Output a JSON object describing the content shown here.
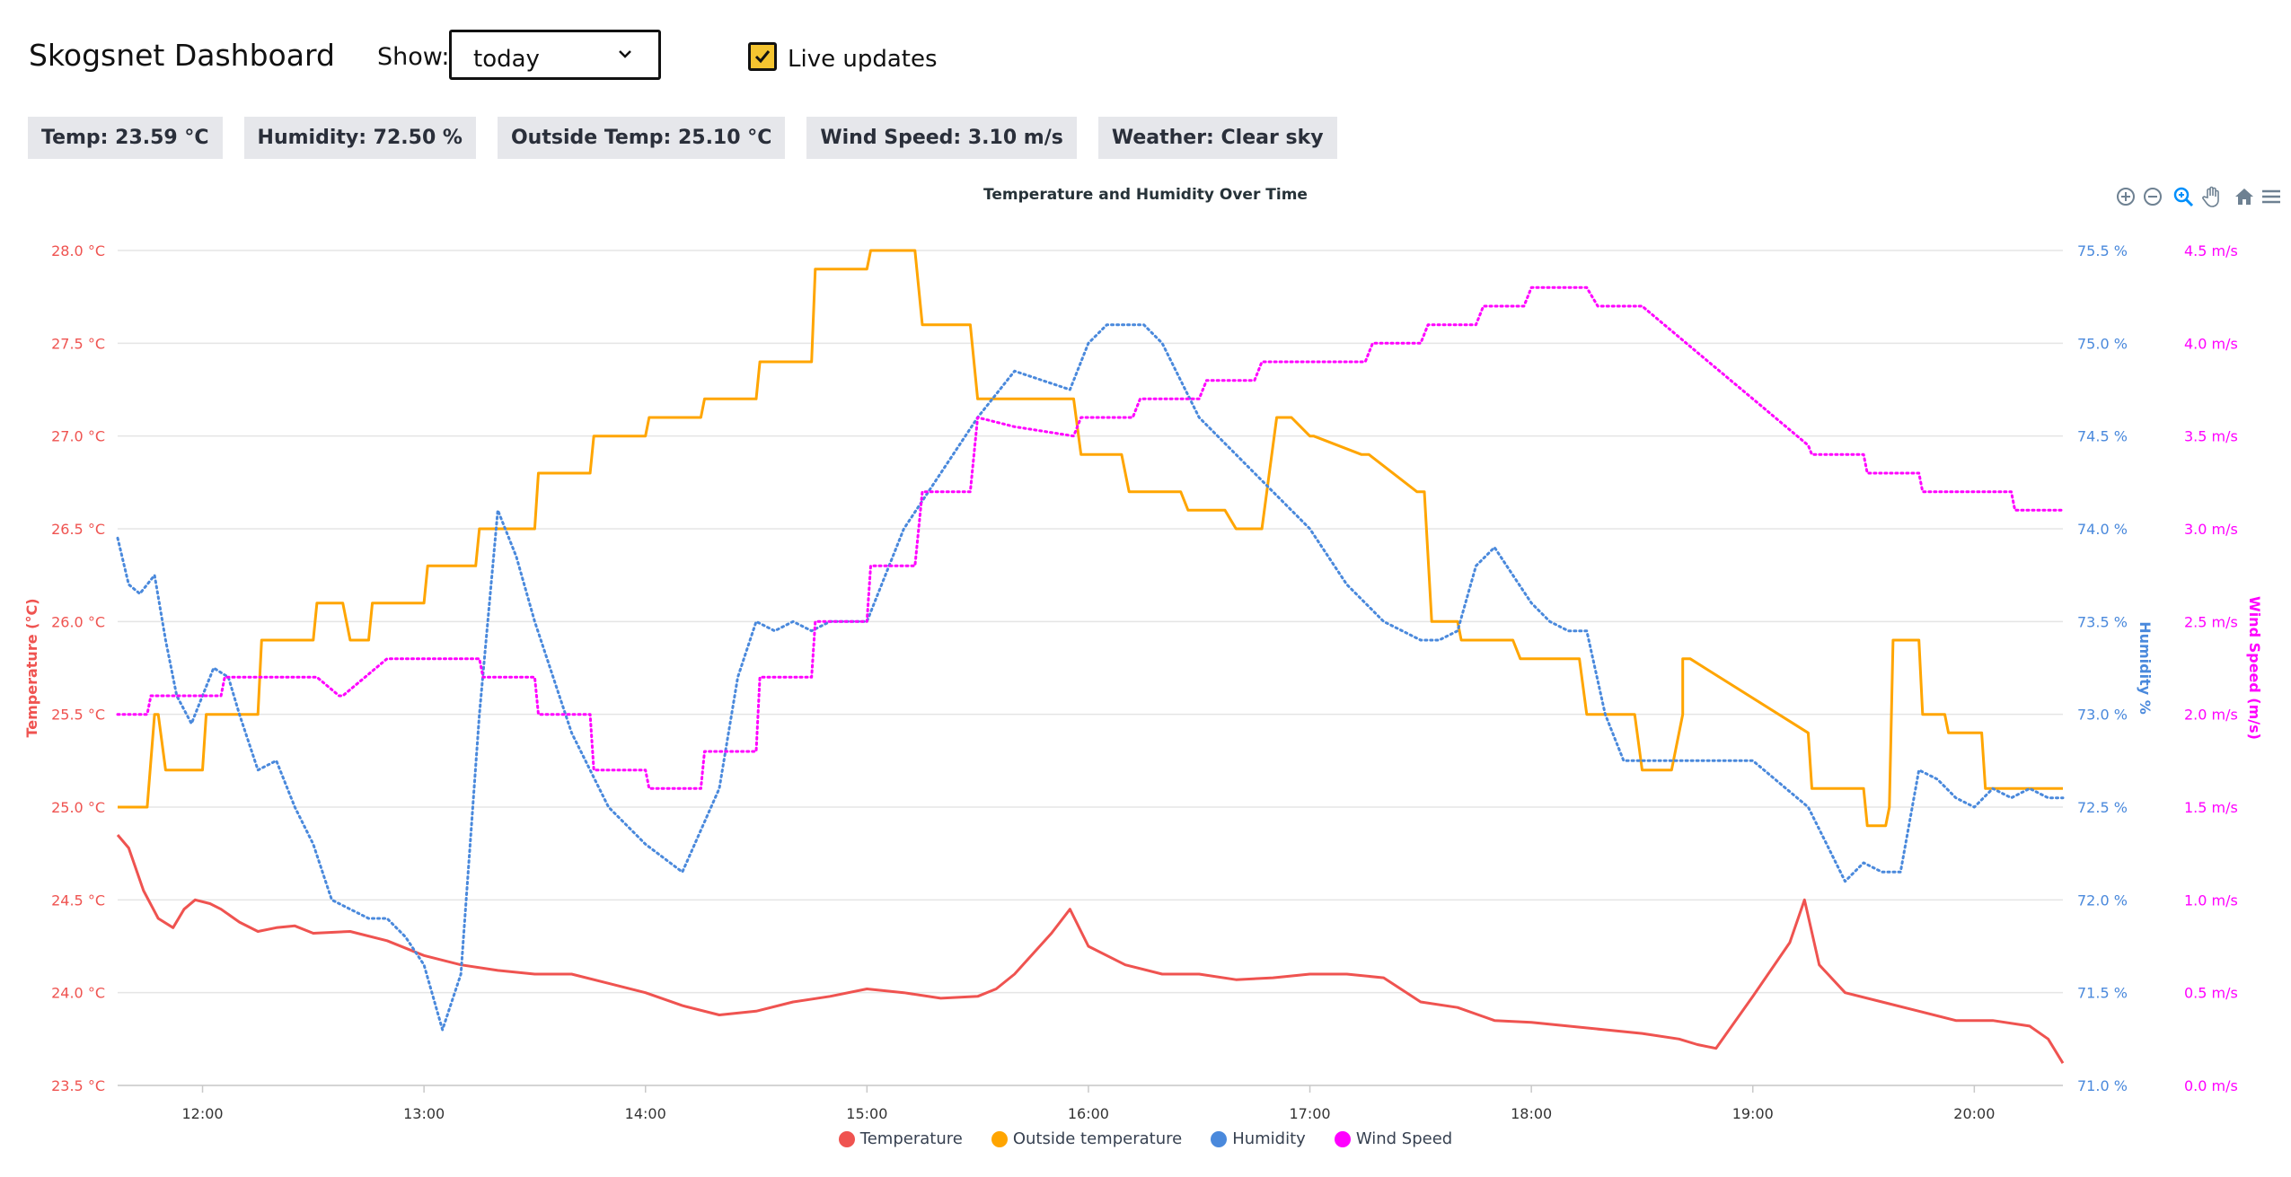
{
  "header": {
    "title": "Skogsnet Dashboard",
    "show_label": "Show:",
    "show_value": "today",
    "live_label": "Live updates",
    "live_checked": true
  },
  "stats": [
    {
      "label": "Temp: 23.59 °C"
    },
    {
      "label": "Humidity: 72.50 %"
    },
    {
      "label": "Outside Temp: 25.10 °C"
    },
    {
      "label": "Wind Speed: 3.10 m/s"
    },
    {
      "label": "Weather: Clear sky"
    }
  ],
  "toolbar": [
    "zoom-in-icon",
    "zoom-out-icon",
    "zoom-selection-icon",
    "pan-hand-icon",
    "home-reset-icon",
    "menu-icon"
  ],
  "colors": {
    "temperature": "#ef5350",
    "outside_temperature": "#ffa500",
    "humidity": "#4a89dc",
    "wind_speed": "#ff00ff",
    "grid": "#e5e5e5",
    "stat_bg": "#e6e7eb",
    "checkbox": "#f4c430"
  },
  "chart_data": {
    "type": "line",
    "title": "Temperature and Humidity Over Time",
    "x_ticks": [
      "12:00",
      "13:00",
      "14:00",
      "15:00",
      "16:00",
      "17:00",
      "18:00",
      "19:00",
      "20:00"
    ],
    "x_range": [
      "11:37",
      "20:24"
    ],
    "legend_position": "bottom",
    "grid": true,
    "axes": [
      {
        "id": "temp",
        "title": "Temperature (°C)",
        "side": "left",
        "range": [
          23.5,
          28.0
        ],
        "ticks": [
          "23.5 °C",
          "24.0 °C",
          "24.5 °C",
          "25.0 °C",
          "25.5 °C",
          "26.0 °C",
          "26.5 °C",
          "27.0 °C",
          "27.5 °C",
          "28.0 °C"
        ]
      },
      {
        "id": "hum",
        "title": "Humidity %",
        "side": "right",
        "range": [
          71.0,
          75.5
        ],
        "ticks": [
          "71.0 %",
          "71.5 %",
          "72.0 %",
          "72.5 %",
          "73.0 %",
          "73.5 %",
          "74.0 %",
          "74.5 %",
          "75.0 %",
          "75.5 %"
        ]
      },
      {
        "id": "wind",
        "title": "Wind Speed (m/s)",
        "side": "right",
        "range": [
          0,
          4.5
        ],
        "ticks": [
          "0.0 m/s",
          "0.5 m/s",
          "1.0 m/s",
          "1.5 m/s",
          "2.0 m/s",
          "2.5 m/s",
          "3.0 m/s",
          "3.5 m/s",
          "4.0 m/s",
          "4.5 m/s"
        ]
      }
    ],
    "series": [
      {
        "name": "Temperature",
        "axis": "temp",
        "style": "solid",
        "x": [
          "11:37",
          "11:40",
          "11:44",
          "11:48",
          "11:52",
          "11:55",
          "11:58",
          "12:02",
          "12:05",
          "12:10",
          "12:15",
          "12:20",
          "12:25",
          "12:30",
          "12:40",
          "12:50",
          "13:00",
          "13:10",
          "13:20",
          "13:30",
          "13:40",
          "13:50",
          "14:00",
          "14:10",
          "14:20",
          "14:30",
          "14:40",
          "14:50",
          "15:00",
          "15:10",
          "15:20",
          "15:30",
          "15:35",
          "15:40",
          "15:50",
          "15:55",
          "16:00",
          "16:10",
          "16:20",
          "16:30",
          "16:40",
          "16:50",
          "17:00",
          "17:10",
          "17:20",
          "17:30",
          "17:40",
          "17:50",
          "18:00",
          "18:10",
          "18:20",
          "18:30",
          "18:40",
          "18:45",
          "18:50",
          "19:00",
          "19:10",
          "19:14",
          "19:18",
          "19:25",
          "19:35",
          "19:45",
          "19:55",
          "20:05",
          "20:15",
          "20:20",
          "20:24"
        ],
        "values": [
          24.85,
          24.78,
          24.55,
          24.4,
          24.35,
          24.45,
          24.5,
          24.48,
          24.45,
          24.38,
          24.33,
          24.35,
          24.36,
          24.32,
          24.33,
          24.28,
          24.2,
          24.15,
          24.12,
          24.1,
          24.1,
          24.05,
          24.0,
          23.93,
          23.88,
          23.9,
          23.95,
          23.98,
          24.02,
          24.0,
          23.97,
          23.98,
          24.02,
          24.1,
          24.32,
          24.45,
          24.25,
          24.15,
          24.1,
          24.1,
          24.07,
          24.08,
          24.1,
          24.1,
          24.08,
          23.95,
          23.92,
          23.85,
          23.84,
          23.82,
          23.8,
          23.78,
          23.75,
          23.72,
          23.7,
          23.98,
          24.27,
          24.5,
          24.15,
          24.0,
          23.95,
          23.9,
          23.85,
          23.85,
          23.82,
          23.75,
          23.62
        ]
      },
      {
        "name": "Outside temperature",
        "axis": "temp",
        "style": "solid",
        "x": [
          "11:37",
          "11:45",
          "11:47",
          "11:48",
          "11:50",
          "11:55",
          "12:00",
          "12:01",
          "12:03",
          "12:10",
          "12:15",
          "12:16",
          "12:30",
          "12:31",
          "12:38",
          "12:40",
          "12:45",
          "12:46",
          "13:00",
          "13:01",
          "13:14",
          "13:15",
          "13:30",
          "13:31",
          "13:45",
          "13:46",
          "14:00",
          "14:01",
          "14:15",
          "14:16",
          "14:30",
          "14:31",
          "14:45",
          "14:46",
          "15:00",
          "15:01",
          "15:13",
          "15:15",
          "15:28",
          "15:30",
          "15:56",
          "15:58",
          "16:09",
          "16:11",
          "16:25",
          "16:27",
          "16:37",
          "16:40",
          "16:47",
          "16:51",
          "16:55",
          "17:00",
          "17:01",
          "17:14",
          "17:16",
          "17:29",
          "17:31",
          "17:33",
          "17:34",
          "17:40",
          "17:41",
          "17:55",
          "17:57",
          "18:13",
          "18:15",
          "18:28",
          "18:30",
          "18:38",
          "18:41",
          "18:41",
          "18:43",
          "19:15",
          "19:16",
          "19:30",
          "19:31",
          "19:36",
          "19:37",
          "19:38",
          "19:45",
          "19:46",
          "19:52",
          "19:53",
          "20:02",
          "20:03",
          "20:15",
          "20:16",
          "20:24"
        ],
        "values": [
          25.0,
          25.0,
          25.5,
          25.5,
          25.2,
          25.2,
          25.2,
          25.5,
          25.5,
          25.5,
          25.5,
          25.9,
          25.9,
          26.1,
          26.1,
          25.9,
          25.9,
          26.1,
          26.1,
          26.3,
          26.3,
          26.5,
          26.5,
          26.8,
          26.8,
          27.0,
          27.0,
          27.1,
          27.1,
          27.2,
          27.2,
          27.4,
          27.4,
          27.9,
          27.9,
          28.0,
          28.0,
          27.6,
          27.6,
          27.2,
          27.2,
          26.9,
          26.9,
          26.7,
          26.7,
          26.6,
          26.6,
          26.5,
          26.5,
          27.1,
          27.1,
          27.0,
          27.0,
          26.9,
          26.9,
          26.7,
          26.7,
          26.0,
          26.0,
          26.0,
          25.9,
          25.9,
          25.8,
          25.8,
          25.5,
          25.5,
          25.2,
          25.2,
          25.5,
          25.8,
          25.8,
          25.4,
          25.1,
          25.1,
          24.9,
          24.9,
          25.0,
          25.9,
          25.9,
          25.5,
          25.5,
          25.4,
          25.4,
          25.1,
          25.1,
          25.1,
          25.1
        ]
      },
      {
        "name": "Humidity",
        "axis": "hum",
        "style": "dotted",
        "x": [
          "11:37",
          "11:40",
          "11:43",
          "11:47",
          "11:50",
          "11:53",
          "11:57",
          "12:00",
          "12:03",
          "12:07",
          "12:10",
          "12:15",
          "12:20",
          "12:25",
          "12:30",
          "12:35",
          "12:40",
          "12:45",
          "12:50",
          "12:55",
          "13:00",
          "13:05",
          "13:10",
          "13:15",
          "13:20",
          "13:25",
          "13:30",
          "13:40",
          "13:50",
          "14:00",
          "14:10",
          "14:20",
          "14:25",
          "14:30",
          "14:35",
          "14:40",
          "14:45",
          "14:50",
          "15:00",
          "15:10",
          "15:20",
          "15:30",
          "15:40",
          "15:55",
          "16:00",
          "16:05",
          "16:10",
          "16:15",
          "16:20",
          "16:30",
          "16:40",
          "16:50",
          "17:00",
          "17:10",
          "17:20",
          "17:30",
          "17:35",
          "17:40",
          "17:45",
          "17:50",
          "17:55",
          "18:00",
          "18:05",
          "18:10",
          "18:15",
          "18:20",
          "18:25",
          "18:30",
          "18:35",
          "18:40",
          "18:45",
          "19:00",
          "19:15",
          "19:20",
          "19:25",
          "19:30",
          "19:35",
          "19:40",
          "19:45",
          "19:50",
          "19:55",
          "20:00",
          "20:05",
          "20:10",
          "20:15",
          "20:20",
          "20:24"
        ],
        "values": [
          73.95,
          73.7,
          73.65,
          73.75,
          73.4,
          73.1,
          72.95,
          73.1,
          73.25,
          73.2,
          73.0,
          72.7,
          72.75,
          72.5,
          72.3,
          72.0,
          71.95,
          71.9,
          71.9,
          71.8,
          71.65,
          71.3,
          71.6,
          73.0,
          74.1,
          73.85,
          73.5,
          72.9,
          72.5,
          72.3,
          72.15,
          72.6,
          73.2,
          73.5,
          73.45,
          73.5,
          73.45,
          73.5,
          73.5,
          74.0,
          74.3,
          74.6,
          74.85,
          74.75,
          75.0,
          75.1,
          75.1,
          75.1,
          75.0,
          74.6,
          74.4,
          74.2,
          74.0,
          73.7,
          73.5,
          73.4,
          73.4,
          73.45,
          73.8,
          73.9,
          73.75,
          73.6,
          73.5,
          73.45,
          73.45,
          73.0,
          72.75,
          72.75,
          72.75,
          72.75,
          72.75,
          72.75,
          72.5,
          72.3,
          72.1,
          72.2,
          72.15,
          72.15,
          72.7,
          72.65,
          72.55,
          72.5,
          72.6,
          72.55,
          72.6,
          72.55,
          72.55
        ]
      },
      {
        "name": "Wind Speed",
        "axis": "wind",
        "style": "dotted",
        "x": [
          "11:37",
          "11:45",
          "11:46",
          "12:05",
          "12:06",
          "12:30",
          "12:31",
          "12:37",
          "12:38",
          "12:50",
          "13:00",
          "13:15",
          "13:16",
          "13:30",
          "13:31",
          "13:45",
          "13:46",
          "14:00",
          "14:01",
          "14:10",
          "14:11",
          "14:15",
          "14:16",
          "14:30",
          "14:31",
          "14:45",
          "14:46",
          "14:55",
          "14:56",
          "15:00",
          "15:01",
          "15:13",
          "15:15",
          "15:28",
          "15:30",
          "15:40",
          "15:56",
          "15:58",
          "16:12",
          "16:14",
          "16:30",
          "16:32",
          "16:45",
          "16:47",
          "17:00",
          "17:10",
          "17:15",
          "17:17",
          "17:30",
          "17:32",
          "17:45",
          "17:47",
          "17:58",
          "18:00",
          "18:15",
          "18:18",
          "18:30",
          "18:45",
          "19:00",
          "19:15",
          "19:16",
          "19:30",
          "19:31",
          "19:45",
          "19:46",
          "20:00",
          "20:10",
          "20:11",
          "20:24"
        ],
        "values": [
          2.0,
          2.0,
          2.1,
          2.1,
          2.2,
          2.2,
          2.2,
          2.1,
          2.1,
          2.3,
          2.3,
          2.3,
          2.2,
          2.2,
          2.0,
          2.0,
          1.7,
          1.7,
          1.6,
          1.6,
          1.6,
          1.6,
          1.8,
          1.8,
          2.2,
          2.2,
          2.5,
          2.5,
          2.5,
          2.5,
          2.8,
          2.8,
          3.2,
          3.2,
          3.6,
          3.55,
          3.5,
          3.6,
          3.6,
          3.7,
          3.7,
          3.8,
          3.8,
          3.9,
          3.9,
          3.9,
          3.9,
          4.0,
          4.0,
          4.1,
          4.1,
          4.2,
          4.2,
          4.3,
          4.3,
          4.2,
          4.2,
          3.95,
          3.7,
          3.45,
          3.4,
          3.4,
          3.3,
          3.3,
          3.2,
          3.2,
          3.2,
          3.1,
          3.1
        ]
      }
    ]
  }
}
